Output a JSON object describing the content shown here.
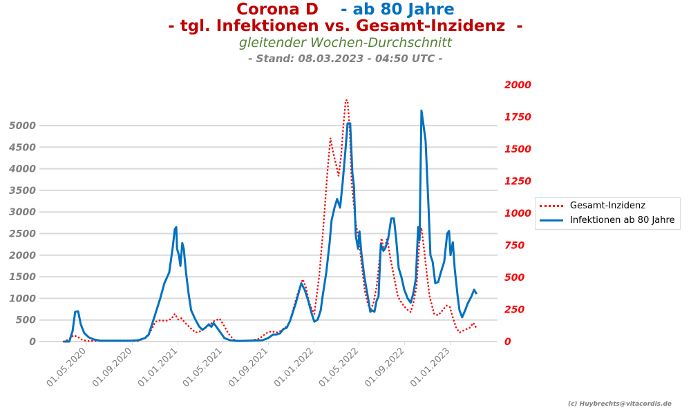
{
  "title": {
    "part1": "Corona D    ",
    "part2": "- ab 80 Jahre",
    "line2": "- tgl. Infektionen vs. Gesamt-Inzidenz  -",
    "subtitle": "gleitender Wochen-Durchschnitt",
    "stand": "- Stand: 08.03.2023 - 04:50 UTC -"
  },
  "credit": "(c) Huybrechts@vitacordis.de",
  "colors": {
    "title_red": "#c00000",
    "title_blue": "#0070c0",
    "infektionen": "#0070c0",
    "inzidenz": "#ff0000",
    "grid": "#d9d9d9"
  },
  "chart_data": {
    "type": "line",
    "x_unit": "days since 2020-01-01",
    "y_left": {
      "ticks": [
        0,
        500,
        1000,
        1500,
        2000,
        2500,
        3000,
        3500,
        4000,
        4500,
        5000
      ],
      "labels": [
        "0",
        "500",
        "1000",
        "1500",
        "2000",
        "2500",
        "3000",
        "3500",
        "4000",
        "4500",
        "5000"
      ],
      "range": [
        0,
        5940
      ]
    },
    "y_right": {
      "ticks": [
        0,
        250,
        500,
        750,
        1000,
        1250,
        1500,
        1750,
        2000
      ],
      "labels": [
        "0",
        "250",
        "500",
        "750",
        "1000",
        "1250",
        "1500",
        "1750",
        "2000"
      ],
      "range": [
        0,
        2000
      ]
    },
    "x_ticks": [
      {
        "day": 121,
        "label": "01.05.2020"
      },
      {
        "day": 244,
        "label": "01.09.2020"
      },
      {
        "day": 366,
        "label": "01.01.2021"
      },
      {
        "day": 486,
        "label": "01.05.2021"
      },
      {
        "day": 609,
        "label": "01.09.2021"
      },
      {
        "day": 731,
        "label": "01.01.2022"
      },
      {
        "day": 851,
        "label": "01.05.2022"
      },
      {
        "day": 974,
        "label": "01.09.2022"
      },
      {
        "day": 1096,
        "label": "01.01.2023"
      }
    ],
    "grid": true,
    "legend_position": "right",
    "series": [
      {
        "name": "Gesamt-Inzidenz",
        "axis": "right",
        "style": "dotted",
        "color": "#ff0000",
        "points": [
          [
            60,
            0
          ],
          [
            75,
            16
          ],
          [
            86,
            48
          ],
          [
            97,
            38
          ],
          [
            108,
            16
          ],
          [
            121,
            5
          ],
          [
            260,
            5
          ],
          [
            278,
            27
          ],
          [
            293,
            80
          ],
          [
            306,
            155
          ],
          [
            319,
            165
          ],
          [
            334,
            160
          ],
          [
            349,
            177
          ],
          [
            358,
            215
          ],
          [
            367,
            172
          ],
          [
            375,
            183
          ],
          [
            386,
            145
          ],
          [
            399,
            108
          ],
          [
            414,
            70
          ],
          [
            427,
            80
          ],
          [
            438,
            102
          ],
          [
            449,
            124
          ],
          [
            464,
            161
          ],
          [
            478,
            178
          ],
          [
            488,
            134
          ],
          [
            501,
            65
          ],
          [
            515,
            16
          ],
          [
            528,
            5
          ],
          [
            556,
            5
          ],
          [
            584,
            21
          ],
          [
            603,
            65
          ],
          [
            617,
            80
          ],
          [
            630,
            70
          ],
          [
            645,
            86
          ],
          [
            658,
            118
          ],
          [
            667,
            160
          ],
          [
            677,
            270
          ],
          [
            690,
            400
          ],
          [
            701,
            485
          ],
          [
            710,
            415
          ],
          [
            719,
            295
          ],
          [
            732,
            215
          ],
          [
            745,
            510
          ],
          [
            756,
            887
          ],
          [
            767,
            1317
          ],
          [
            775,
            1585
          ],
          [
            782,
            1478
          ],
          [
            791,
            1370
          ],
          [
            797,
            1290
          ],
          [
            804,
            1450
          ],
          [
            810,
            1693
          ],
          [
            816,
            1880
          ],
          [
            821,
            1880
          ],
          [
            827,
            1640
          ],
          [
            832,
            1236
          ],
          [
            840,
            995
          ],
          [
            845,
            887
          ],
          [
            851,
            806
          ],
          [
            858,
            618
          ],
          [
            867,
            400
          ],
          [
            875,
            296
          ],
          [
            882,
            242
          ],
          [
            890,
            296
          ],
          [
            899,
            430
          ],
          [
            904,
            565
          ],
          [
            912,
            806
          ],
          [
            919,
            699
          ],
          [
            927,
            806
          ],
          [
            936,
            645
          ],
          [
            945,
            510
          ],
          [
            956,
            350
          ],
          [
            967,
            296
          ],
          [
            979,
            253
          ],
          [
            990,
            230
          ],
          [
            997,
            296
          ],
          [
            1006,
            430
          ],
          [
            1014,
            806
          ],
          [
            1019,
            887
          ],
          [
            1027,
            699
          ],
          [
            1034,
            510
          ],
          [
            1041,
            350
          ],
          [
            1053,
            215
          ],
          [
            1064,
            205
          ],
          [
            1075,
            242
          ],
          [
            1086,
            280
          ],
          [
            1095,
            269
          ],
          [
            1103,
            188
          ],
          [
            1112,
            108
          ],
          [
            1121,
            70
          ],
          [
            1134,
            90
          ],
          [
            1149,
            108
          ],
          [
            1158,
            145
          ],
          [
            1167,
            102
          ]
        ]
      },
      {
        "name": "Infektionen ab 80 Jahre",
        "axis": "left",
        "style": "solid",
        "color": "#0070c0",
        "points": [
          [
            60,
            0
          ],
          [
            75,
            0
          ],
          [
            84,
            240
          ],
          [
            91,
            690
          ],
          [
            99,
            700
          ],
          [
            106,
            400
          ],
          [
            115,
            200
          ],
          [
            127,
            100
          ],
          [
            140,
            50
          ],
          [
            158,
            20
          ],
          [
            241,
            20
          ],
          [
            260,
            30
          ],
          [
            278,
            80
          ],
          [
            288,
            160
          ],
          [
            297,
            400
          ],
          [
            308,
            700
          ],
          [
            319,
            1000
          ],
          [
            330,
            1350
          ],
          [
            343,
            1600
          ],
          [
            352,
            2150
          ],
          [
            358,
            2600
          ],
          [
            362,
            2650
          ],
          [
            364,
            2150
          ],
          [
            369,
            2000
          ],
          [
            373,
            1750
          ],
          [
            378,
            2280
          ],
          [
            382,
            2150
          ],
          [
            388,
            1600
          ],
          [
            395,
            1100
          ],
          [
            402,
            720
          ],
          [
            412,
            530
          ],
          [
            423,
            350
          ],
          [
            432,
            270
          ],
          [
            441,
            330
          ],
          [
            449,
            400
          ],
          [
            456,
            340
          ],
          [
            462,
            430
          ],
          [
            467,
            370
          ],
          [
            478,
            240
          ],
          [
            491,
            80
          ],
          [
            506,
            30
          ],
          [
            528,
            15
          ],
          [
            593,
            30
          ],
          [
            608,
            80
          ],
          [
            621,
            160
          ],
          [
            630,
            160
          ],
          [
            640,
            190
          ],
          [
            649,
            290
          ],
          [
            658,
            320
          ],
          [
            667,
            480
          ],
          [
            682,
            880
          ],
          [
            697,
            1350
          ],
          [
            706,
            1200
          ],
          [
            715,
            960
          ],
          [
            725,
            640
          ],
          [
            732,
            460
          ],
          [
            741,
            510
          ],
          [
            749,
            720
          ],
          [
            754,
            1040
          ],
          [
            764,
            1600
          ],
          [
            773,
            2300
          ],
          [
            778,
            2800
          ],
          [
            786,
            3100
          ],
          [
            793,
            3300
          ],
          [
            801,
            3100
          ],
          [
            808,
            3700
          ],
          [
            816,
            4500
          ],
          [
            821,
            5050
          ],
          [
            828,
            5050
          ],
          [
            834,
            3900
          ],
          [
            838,
            3600
          ],
          [
            843,
            2450
          ],
          [
            849,
            2150
          ],
          [
            853,
            2550
          ],
          [
            858,
            2050
          ],
          [
            866,
            1500
          ],
          [
            875,
            1050
          ],
          [
            882,
            690
          ],
          [
            888,
            720
          ],
          [
            893,
            690
          ],
          [
            899,
            950
          ],
          [
            904,
            1040
          ],
          [
            910,
            2250
          ],
          [
            917,
            2100
          ],
          [
            923,
            2180
          ],
          [
            930,
            2400
          ],
          [
            938,
            2850
          ],
          [
            945,
            2850
          ],
          [
            951,
            2400
          ],
          [
            958,
            1700
          ],
          [
            965,
            1500
          ],
          [
            973,
            1200
          ],
          [
            982,
            1000
          ],
          [
            990,
            900
          ],
          [
            997,
            1100
          ],
          [
            1004,
            1450
          ],
          [
            1010,
            2650
          ],
          [
            1014,
            2350
          ],
          [
            1019,
            5350
          ],
          [
            1023,
            5100
          ],
          [
            1030,
            4650
          ],
          [
            1038,
            3100
          ],
          [
            1043,
            2000
          ],
          [
            1049,
            1850
          ],
          [
            1056,
            1350
          ],
          [
            1064,
            1380
          ],
          [
            1071,
            1600
          ],
          [
            1080,
            1850
          ],
          [
            1088,
            2500
          ],
          [
            1093,
            2560
          ],
          [
            1097,
            2000
          ],
          [
            1103,
            2300
          ],
          [
            1108,
            1700
          ],
          [
            1116,
            1050
          ],
          [
            1121,
            720
          ],
          [
            1128,
            560
          ],
          [
            1136,
            720
          ],
          [
            1143,
            880
          ],
          [
            1153,
            1050
          ],
          [
            1160,
            1200
          ],
          [
            1167,
            1100
          ]
        ]
      }
    ]
  }
}
